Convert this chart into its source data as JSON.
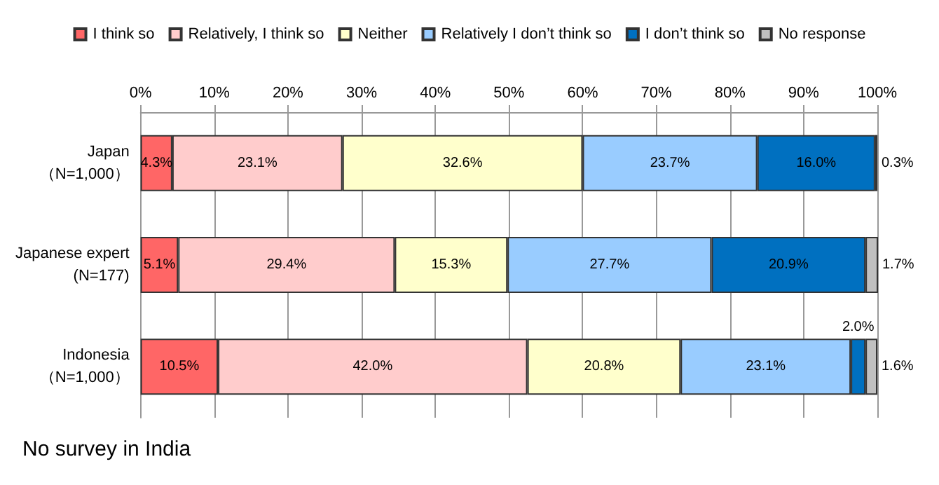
{
  "chart_data": {
    "type": "bar",
    "orientation": "horizontal",
    "stacked": true,
    "categories": [
      "Japan\n（N=1,000）",
      "Japanese expert\n(N=177)",
      "Indonesia\n（N=1,000）"
    ],
    "series": [
      {
        "name": "I think so",
        "color": "#ff6666",
        "values": [
          4.3,
          5.1,
          10.5
        ],
        "value_labels": [
          "4.3%",
          "5.1%",
          "10.5%"
        ]
      },
      {
        "name": "Relatively, I think so",
        "color": "#ffcccc",
        "values": [
          23.1,
          29.4,
          42.0
        ],
        "value_labels": [
          "23.1%",
          "29.4%",
          "42.0%"
        ]
      },
      {
        "name": "Neither",
        "color": "#ffffcc",
        "values": [
          32.6,
          15.3,
          20.8
        ],
        "value_labels": [
          "32.6%",
          "15.3%",
          "20.8%"
        ]
      },
      {
        "name": "Relatively I don’t think so",
        "color": "#99ccff",
        "values": [
          23.7,
          27.7,
          23.1
        ],
        "value_labels": [
          "23.7%",
          "27.7%",
          "23.1%"
        ]
      },
      {
        "name": "I don’t think so",
        "color": "#0070c0",
        "values": [
          16.0,
          20.9,
          2.0
        ],
        "value_labels": [
          "16.0%",
          "20.9%",
          "2.0%"
        ]
      },
      {
        "name": "No response",
        "color": "#c0c0c0",
        "values": [
          0.3,
          1.7,
          1.6
        ],
        "value_labels": [
          "0.3%",
          "1.7%",
          "1.6%"
        ]
      }
    ],
    "xlim": [
      0,
      100
    ],
    "xticks": [
      {
        "value": 0,
        "label": "0%"
      },
      {
        "value": 10,
        "label": "10%"
      },
      {
        "value": 20,
        "label": "20%"
      },
      {
        "value": 30,
        "label": "30%"
      },
      {
        "value": 40,
        "label": "40%"
      },
      {
        "value": 50,
        "label": "50%"
      },
      {
        "value": 60,
        "label": "60%"
      },
      {
        "value": 70,
        "label": "70%"
      },
      {
        "value": 80,
        "label": "80%"
      },
      {
        "value": 90,
        "label": "90%"
      },
      {
        "value": 100,
        "label": "100%"
      }
    ],
    "grid": "x",
    "legend": "top",
    "annotations": [
      "No survey in India"
    ]
  }
}
